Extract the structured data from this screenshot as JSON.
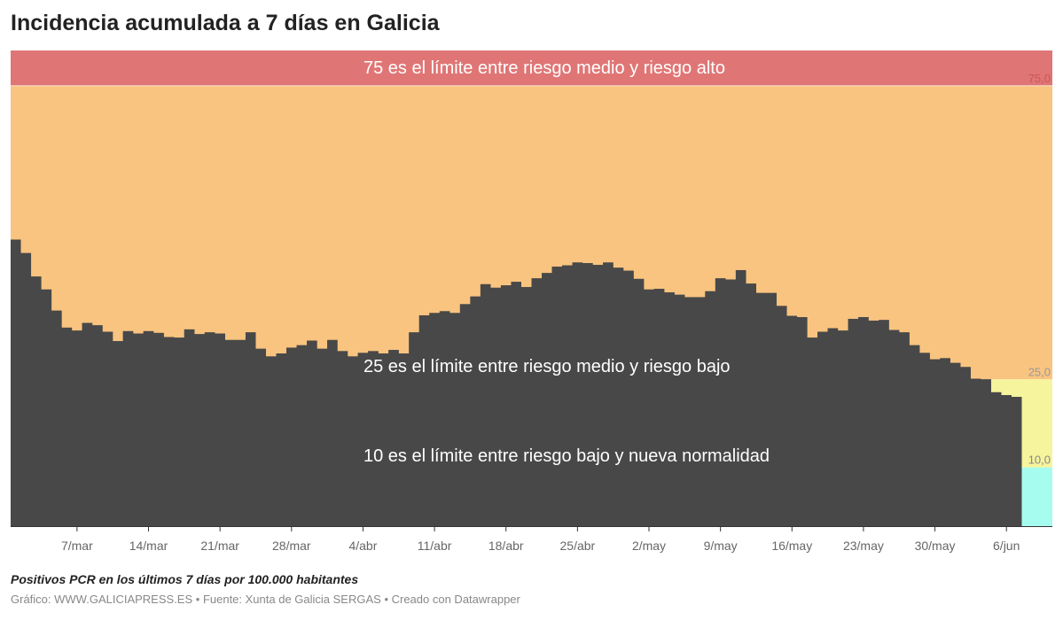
{
  "title": "Incidencia acumulada a 7 días en Galicia",
  "notes": "Positivos PCR en los últimos 7 días por 100.000 habitantes",
  "footer": {
    "grafico": "Gráfico: WWW.GALICIAPRESS.ES",
    "fuente": "Fuente: Xunta de Galicia SERGAS",
    "creado": "Creado con Datawrapper",
    "separator": " • "
  },
  "colors": {
    "bars": "#484848",
    "alto": "#df7675",
    "medio": "#f9c480",
    "bajo": "#f6f49c",
    "normalidad": "#a6fcef",
    "axis": "#333333"
  },
  "chart_data": {
    "type": "bar",
    "ylim": [
      0,
      81
    ],
    "thresholds": [
      {
        "value": 75,
        "label": "75,0",
        "text": "75 es el límite entre riesgo medio y riesgo alto"
      },
      {
        "value": 25,
        "label": "25,0",
        "text": "25 es el límite entre riesgo medio y riesgo bajo"
      },
      {
        "value": 10,
        "label": "10,0",
        "text": "10 es el límite entre riesgo bajo y nueva normalidad"
      }
    ],
    "x_ticks": [
      {
        "index": 6,
        "label": "7/mar"
      },
      {
        "index": 13,
        "label": "14/mar"
      },
      {
        "index": 20,
        "label": "21/mar"
      },
      {
        "index": 27,
        "label": "28/mar"
      },
      {
        "index": 34,
        "label": "4/abr"
      },
      {
        "index": 41,
        "label": "11/abr"
      },
      {
        "index": 48,
        "label": "18/abr"
      },
      {
        "index": 55,
        "label": "25/abr"
      },
      {
        "index": 62,
        "label": "2/may"
      },
      {
        "index": 69,
        "label": "9/may"
      },
      {
        "index": 76,
        "label": "16/may"
      },
      {
        "index": 83,
        "label": "23/may"
      },
      {
        "index": 90,
        "label": "30/may"
      },
      {
        "index": 97,
        "label": "6/jun"
      }
    ],
    "values": [
      48.8,
      46.5,
      42.5,
      40.3,
      36.7,
      33.8,
      33.3,
      34.6,
      34.2,
      33.1,
      31.5,
      33.2,
      32.8,
      33.2,
      32.9,
      32.2,
      32.1,
      33.5,
      32.7,
      33.0,
      32.8,
      31.7,
      31.7,
      33.0,
      30.2,
      28.9,
      29.4,
      30.4,
      30.8,
      31.6,
      30.2,
      31.7,
      29.8,
      28.9,
      29.5,
      29.8,
      29.4,
      30.0,
      29.4,
      33.0,
      35.9,
      36.3,
      36.6,
      36.3,
      37.8,
      39.1,
      41.2,
      40.6,
      41.0,
      41.6,
      40.7,
      42.2,
      43.1,
      44.2,
      44.4,
      44.9,
      44.8,
      44.5,
      44.9,
      44.0,
      43.5,
      42.1,
      40.3,
      40.4,
      39.8,
      39.4,
      39.0,
      39.0,
      40.0,
      42.2,
      42.0,
      43.6,
      41.3,
      39.7,
      39.7,
      37.5,
      35.8,
      35.6,
      32.1,
      33.1,
      33.7,
      33.3,
      35.3,
      35.6,
      35.0,
      35.1,
      33.4,
      33.0,
      30.8,
      29.5,
      28.4,
      28.6,
      27.8,
      27.1,
      25.1,
      25.0,
      22.8,
      22.3,
      22.0
    ]
  }
}
